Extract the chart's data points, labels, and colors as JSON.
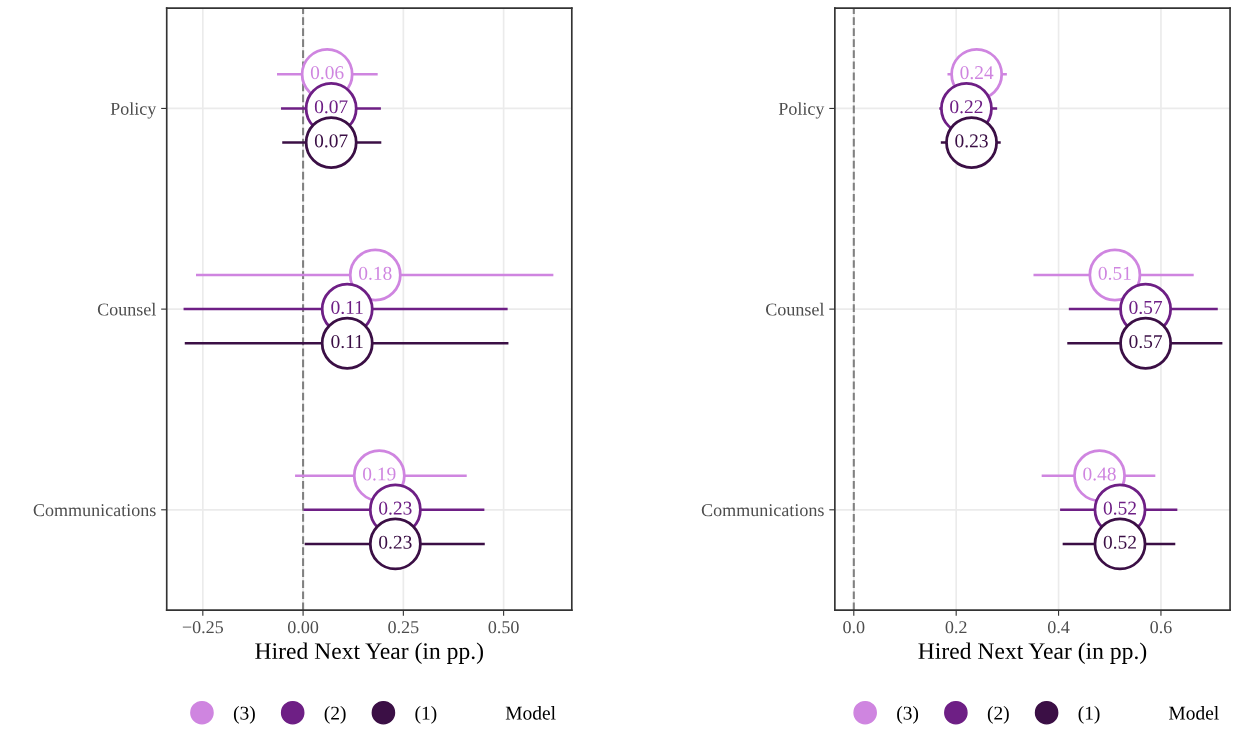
{
  "chart_data": [
    {
      "type": "scatter",
      "orientation": "horizontal",
      "categories": [
        "Policy",
        "Counsel",
        "Communications"
      ],
      "xlabel": "Hired Next Year (in pp.)",
      "legend_title": "Model",
      "legend": "bottom",
      "grid": true,
      "marker": "circle",
      "data_labels": true,
      "xlim": [
        -0.34,
        0.67
      ],
      "xticks": [
        {
          "value": -0.25,
          "label": "−0.25"
        },
        {
          "value": 0,
          "label": "0.00"
        },
        {
          "value": 0.25,
          "label": "0.25"
        },
        {
          "value": 0.5,
          "label": "0.50"
        }
      ],
      "ref_lines": [
        {
          "axis": "x",
          "value": 0,
          "label": null,
          "color": "#808080",
          "line_style": "dashed"
        }
      ],
      "series": [
        {
          "name": "(3)",
          "color": "#cf85e0",
          "values": [
            0.06,
            0.18,
            0.19
          ],
          "errors": [
            [
              -0.065,
              0.186
            ],
            [
              -0.267,
              0.624
            ],
            [
              -0.02,
              0.408
            ]
          ]
        },
        {
          "name": "(2)",
          "color": "#6e1f85",
          "values": [
            0.07,
            0.11,
            0.23
          ],
          "errors": [
            [
              -0.055,
              0.194
            ],
            [
              -0.298,
              0.51
            ],
            [
              0.001,
              0.452
            ]
          ]
        },
        {
          "name": "(1)",
          "color": "#3b0f45",
          "values": [
            0.07,
            0.11,
            0.23
          ],
          "errors": [
            [
              -0.052,
              0.195
            ],
            [
              -0.295,
              0.512
            ],
            [
              0.004,
              0.453
            ]
          ]
        }
      ]
    },
    {
      "type": "scatter",
      "orientation": "horizontal",
      "categories": [
        "Policy",
        "Counsel",
        "Communications"
      ],
      "xlabel": "Hired Next Year (in pp.)",
      "legend_title": "Model",
      "legend": "bottom",
      "grid": true,
      "marker": "circle",
      "data_labels": true,
      "xlim": [
        -0.037,
        0.735
      ],
      "xticks": [
        {
          "value": 0,
          "label": "0.0"
        },
        {
          "value": 0.2,
          "label": "0.2"
        },
        {
          "value": 0.4,
          "label": "0.4"
        },
        {
          "value": 0.6,
          "label": "0.6"
        }
      ],
      "ref_lines": [
        {
          "axis": "x",
          "value": 0,
          "label": null,
          "color": "#808080",
          "line_style": "dashed"
        }
      ],
      "series": [
        {
          "name": "(3)",
          "color": "#cf85e0",
          "values": [
            0.24,
            0.51,
            0.48
          ],
          "errors": [
            [
              0.183,
              0.299
            ],
            [
              0.351,
              0.664
            ],
            [
              0.367,
              0.589
            ]
          ]
        },
        {
          "name": "(2)",
          "color": "#6e1f85",
          "values": [
            0.22,
            0.57,
            0.52
          ],
          "errors": [
            [
              0.167,
              0.28
            ],
            [
              0.42,
              0.711
            ],
            [
              0.403,
              0.632
            ]
          ]
        },
        {
          "name": "(1)",
          "color": "#3b0f45",
          "values": [
            0.23,
            0.57,
            0.52
          ],
          "errors": [
            [
              0.17,
              0.287
            ],
            [
              0.417,
              0.72
            ],
            [
              0.408,
              0.628
            ]
          ]
        }
      ]
    }
  ]
}
